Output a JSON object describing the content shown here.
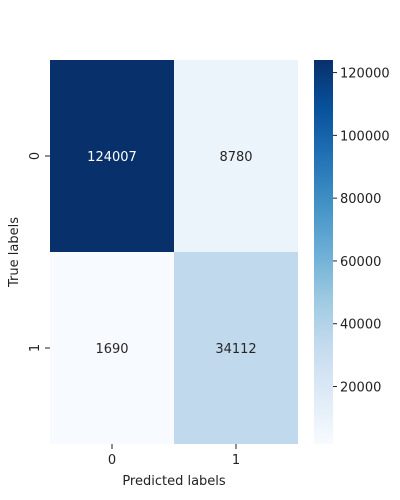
{
  "chart_data": {
    "type": "heatmap",
    "title": "",
    "xlabel": "Predicted labels",
    "ylabel": "True labels",
    "x_categories": [
      "0",
      "1"
    ],
    "y_categories": [
      "0",
      "1"
    ],
    "values": [
      [
        124007,
        8780
      ],
      [
        1690,
        34112
      ]
    ],
    "colormap": "Blues",
    "colorbar": {
      "range": [
        1690,
        124007
      ],
      "ticks": [
        20000,
        40000,
        60000,
        80000,
        100000,
        120000
      ],
      "tick_labels": [
        "20000",
        "40000",
        "60000",
        "80000",
        "100000",
        "120000"
      ]
    },
    "text_colors": {
      "dark_cell": "#ffffff",
      "light_cell": "#262626"
    }
  }
}
